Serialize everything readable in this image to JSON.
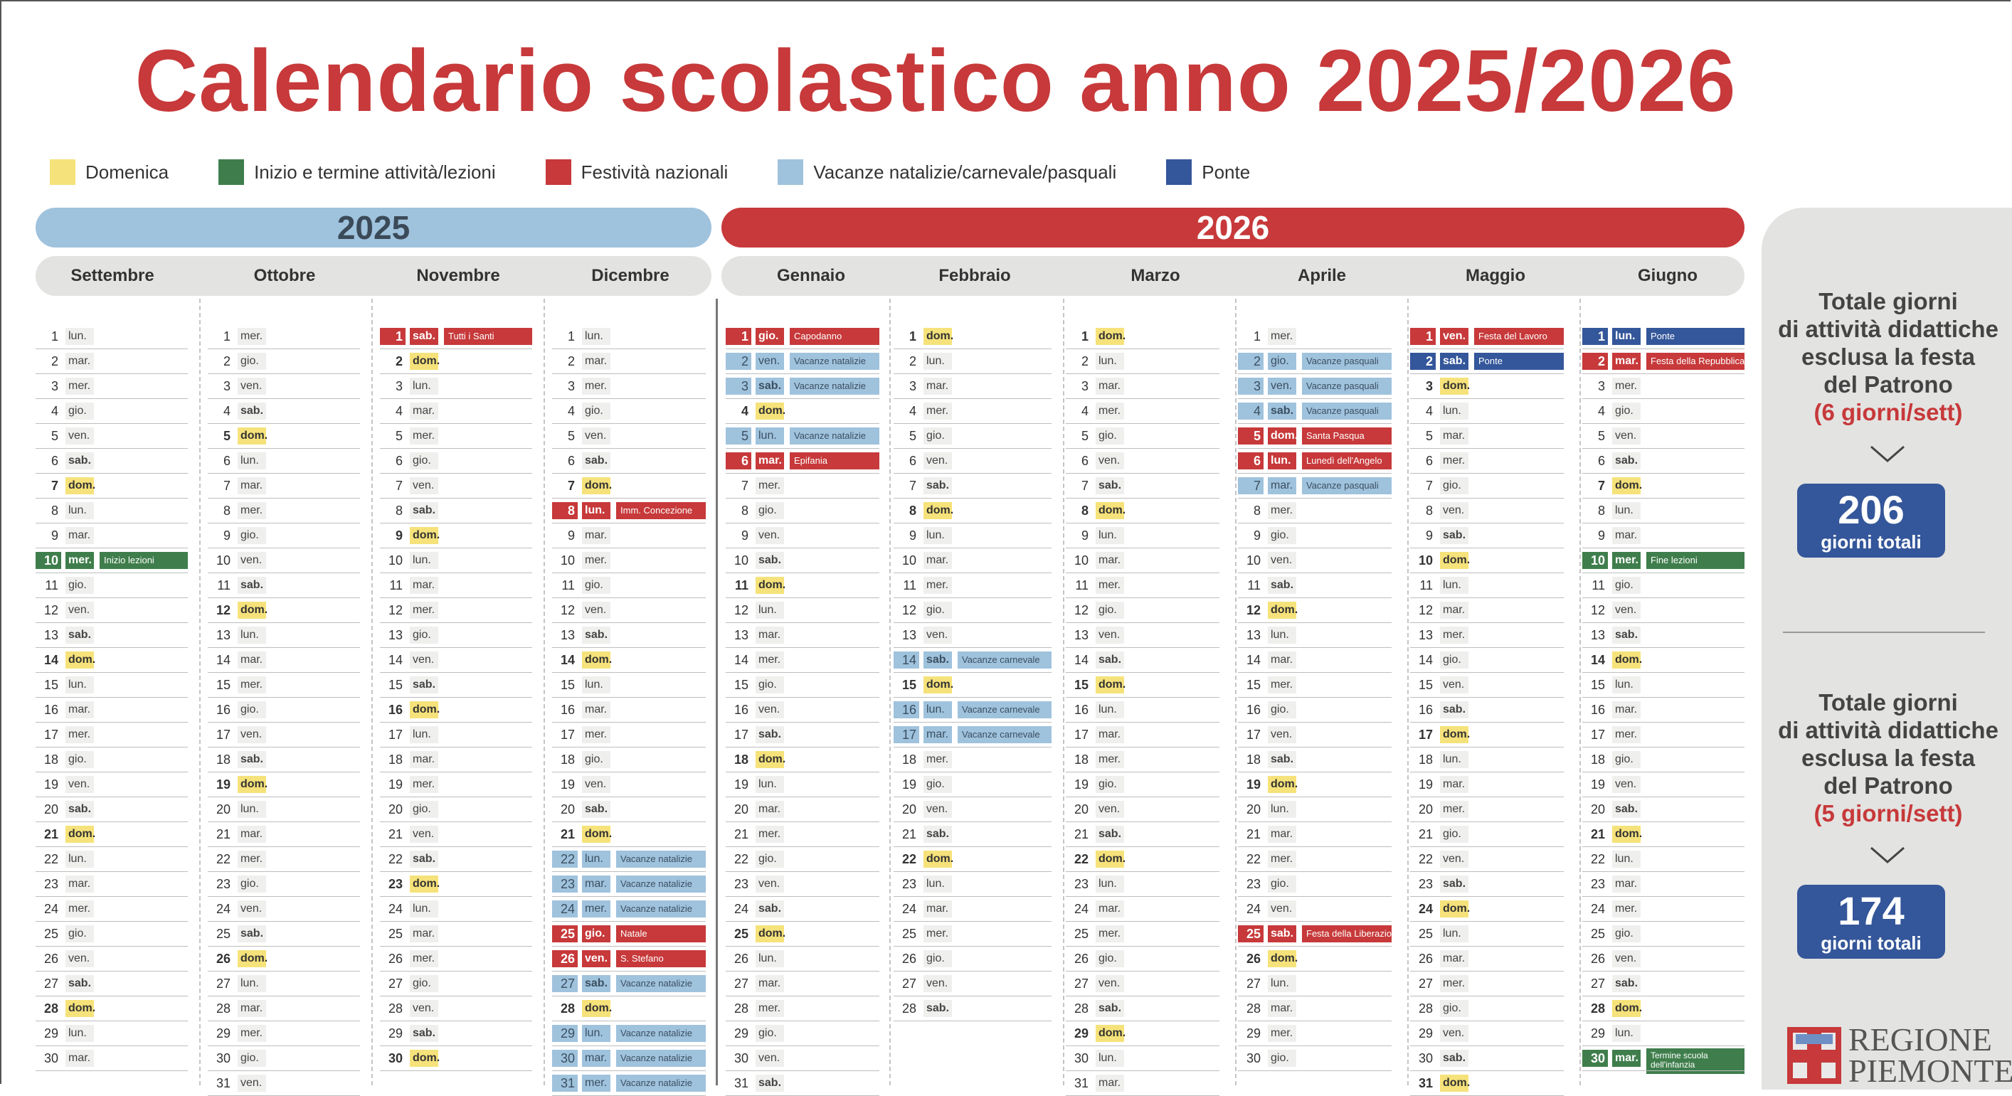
{
  "title": "Calendario scolastico anno 2025/2026",
  "colors": {
    "domenica": "#f6e27a",
    "inizio": "#3f7e4c",
    "festa": "#c7393a",
    "vacanze": "#9fc2dd",
    "ponte": "#34569a",
    "year2025": "#9fc2dd",
    "year2026": "#c7393a"
  },
  "legend": [
    {
      "label": "Domenica",
      "color": "#f6e27a"
    },
    {
      "label": "Inizio e termine attività/lezioni",
      "color": "#3f7e4c"
    },
    {
      "label": "Festività nazionali",
      "color": "#c7393a"
    },
    {
      "label": "Vacanze natalizie/carnevale/pasquali",
      "color": "#9fc2dd"
    },
    {
      "label": "Ponte",
      "color": "#34569a"
    }
  ],
  "years": {
    "y2025": "2025",
    "y2026": "2026"
  },
  "months": [
    {
      "name": "Settembre",
      "year": 2025,
      "month": 9,
      "visible_days": 30,
      "events": {
        "10": {
          "type": "inizio",
          "label": "Inizio lezioni"
        }
      }
    },
    {
      "name": "Ottobre",
      "year": 2025,
      "month": 10,
      "visible_days": 31,
      "events": {}
    },
    {
      "name": "Novembre",
      "year": 2025,
      "month": 11,
      "visible_days": 30,
      "events": {
        "1": {
          "type": "festa",
          "label": "Tutti i Santi"
        }
      }
    },
    {
      "name": "Dicembre",
      "year": 2025,
      "month": 12,
      "visible_days": 31,
      "events": {
        "8": {
          "type": "festa",
          "label": "Imm. Concezione"
        },
        "22": {
          "type": "vac",
          "label": "Vacanze natalizie"
        },
        "23": {
          "type": "vac",
          "label": "Vacanze natalizie"
        },
        "24": {
          "type": "vac",
          "label": "Vacanze natalizie"
        },
        "25": {
          "type": "festa",
          "label": "Natale"
        },
        "26": {
          "type": "festa",
          "label": "S. Stefano"
        },
        "27": {
          "type": "vac",
          "label": "Vacanze natalizie"
        },
        "29": {
          "type": "vac",
          "label": "Vacanze natalizie"
        },
        "30": {
          "type": "vac",
          "label": "Vacanze natalizie"
        },
        "31": {
          "type": "vac",
          "label": "Vacanze natalizie"
        }
      }
    },
    {
      "name": "Gennaio",
      "year": 2026,
      "month": 1,
      "visible_days": 31,
      "events": {
        "1": {
          "type": "festa",
          "label": "Capodanno"
        },
        "2": {
          "type": "vac",
          "label": "Vacanze natalizie"
        },
        "3": {
          "type": "vac",
          "label": "Vacanze natalizie"
        },
        "5": {
          "type": "vac",
          "label": "Vacanze natalizie"
        },
        "6": {
          "type": "festa",
          "label": "Epifania"
        }
      }
    },
    {
      "name": "Febbraio",
      "year": 2026,
      "month": 2,
      "visible_days": 28,
      "events": {
        "14": {
          "type": "vac",
          "label": "Vacanze carnevale"
        },
        "16": {
          "type": "vac",
          "label": "Vacanze carnevale"
        },
        "17": {
          "type": "vac",
          "label": "Vacanze carnevale"
        }
      }
    },
    {
      "name": "Marzo",
      "year": 2026,
      "month": 3,
      "visible_days": 31,
      "events": {}
    },
    {
      "name": "Aprile",
      "year": 2026,
      "month": 4,
      "visible_days": 30,
      "events": {
        "2": {
          "type": "vac",
          "label": "Vacanze pasquali"
        },
        "3": {
          "type": "vac",
          "label": "Vacanze pasquali"
        },
        "4": {
          "type": "vac",
          "label": "Vacanze pasquali"
        },
        "5": {
          "type": "festa",
          "label": "Santa Pasqua"
        },
        "6": {
          "type": "festa",
          "label": "Lunedì dell'Angelo"
        },
        "7": {
          "type": "vac",
          "label": "Vacanze pasquali"
        },
        "25": {
          "type": "festa",
          "label": "Festa della Liberazione"
        }
      }
    },
    {
      "name": "Maggio",
      "year": 2026,
      "month": 5,
      "visible_days": 31,
      "events": {
        "1": {
          "type": "festa",
          "label": "Festa del Lavoro"
        },
        "2": {
          "type": "ponte",
          "label": "Ponte"
        }
      }
    },
    {
      "name": "Giugno",
      "year": 2026,
      "month": 6,
      "visible_days": 30,
      "events": {
        "1": {
          "type": "ponte",
          "label": "Ponte"
        },
        "2": {
          "type": "festa",
          "label": "Festa della Repubblica"
        },
        "10": {
          "type": "inizio",
          "label": "Fine lezioni"
        },
        "30": {
          "type": "inizio",
          "label": "Termine scuola dell'infanzia"
        }
      }
    }
  ],
  "weekday_abbr": [
    "dom.",
    "lun.",
    "mar.",
    "mer.",
    "gio.",
    "ven.",
    "sab."
  ],
  "sidebar": {
    "block1": {
      "line1": "Totale giorni",
      "line2": "di attività didattiche",
      "line3": "esclusa la festa",
      "line4": "del Patrono",
      "note": "(6 giorni/sett)",
      "total": "206",
      "total_label": "giorni totali"
    },
    "block2": {
      "line1": "Totale giorni",
      "line2": "di attività didattiche",
      "line3": "esclusa la festa",
      "line4": "del Patrono",
      "note": "(5 giorni/sett)",
      "total": "174",
      "total_label": "giorni totali"
    },
    "logo_line1": "REGIONE",
    "logo_line2": "PIEMONTE"
  }
}
